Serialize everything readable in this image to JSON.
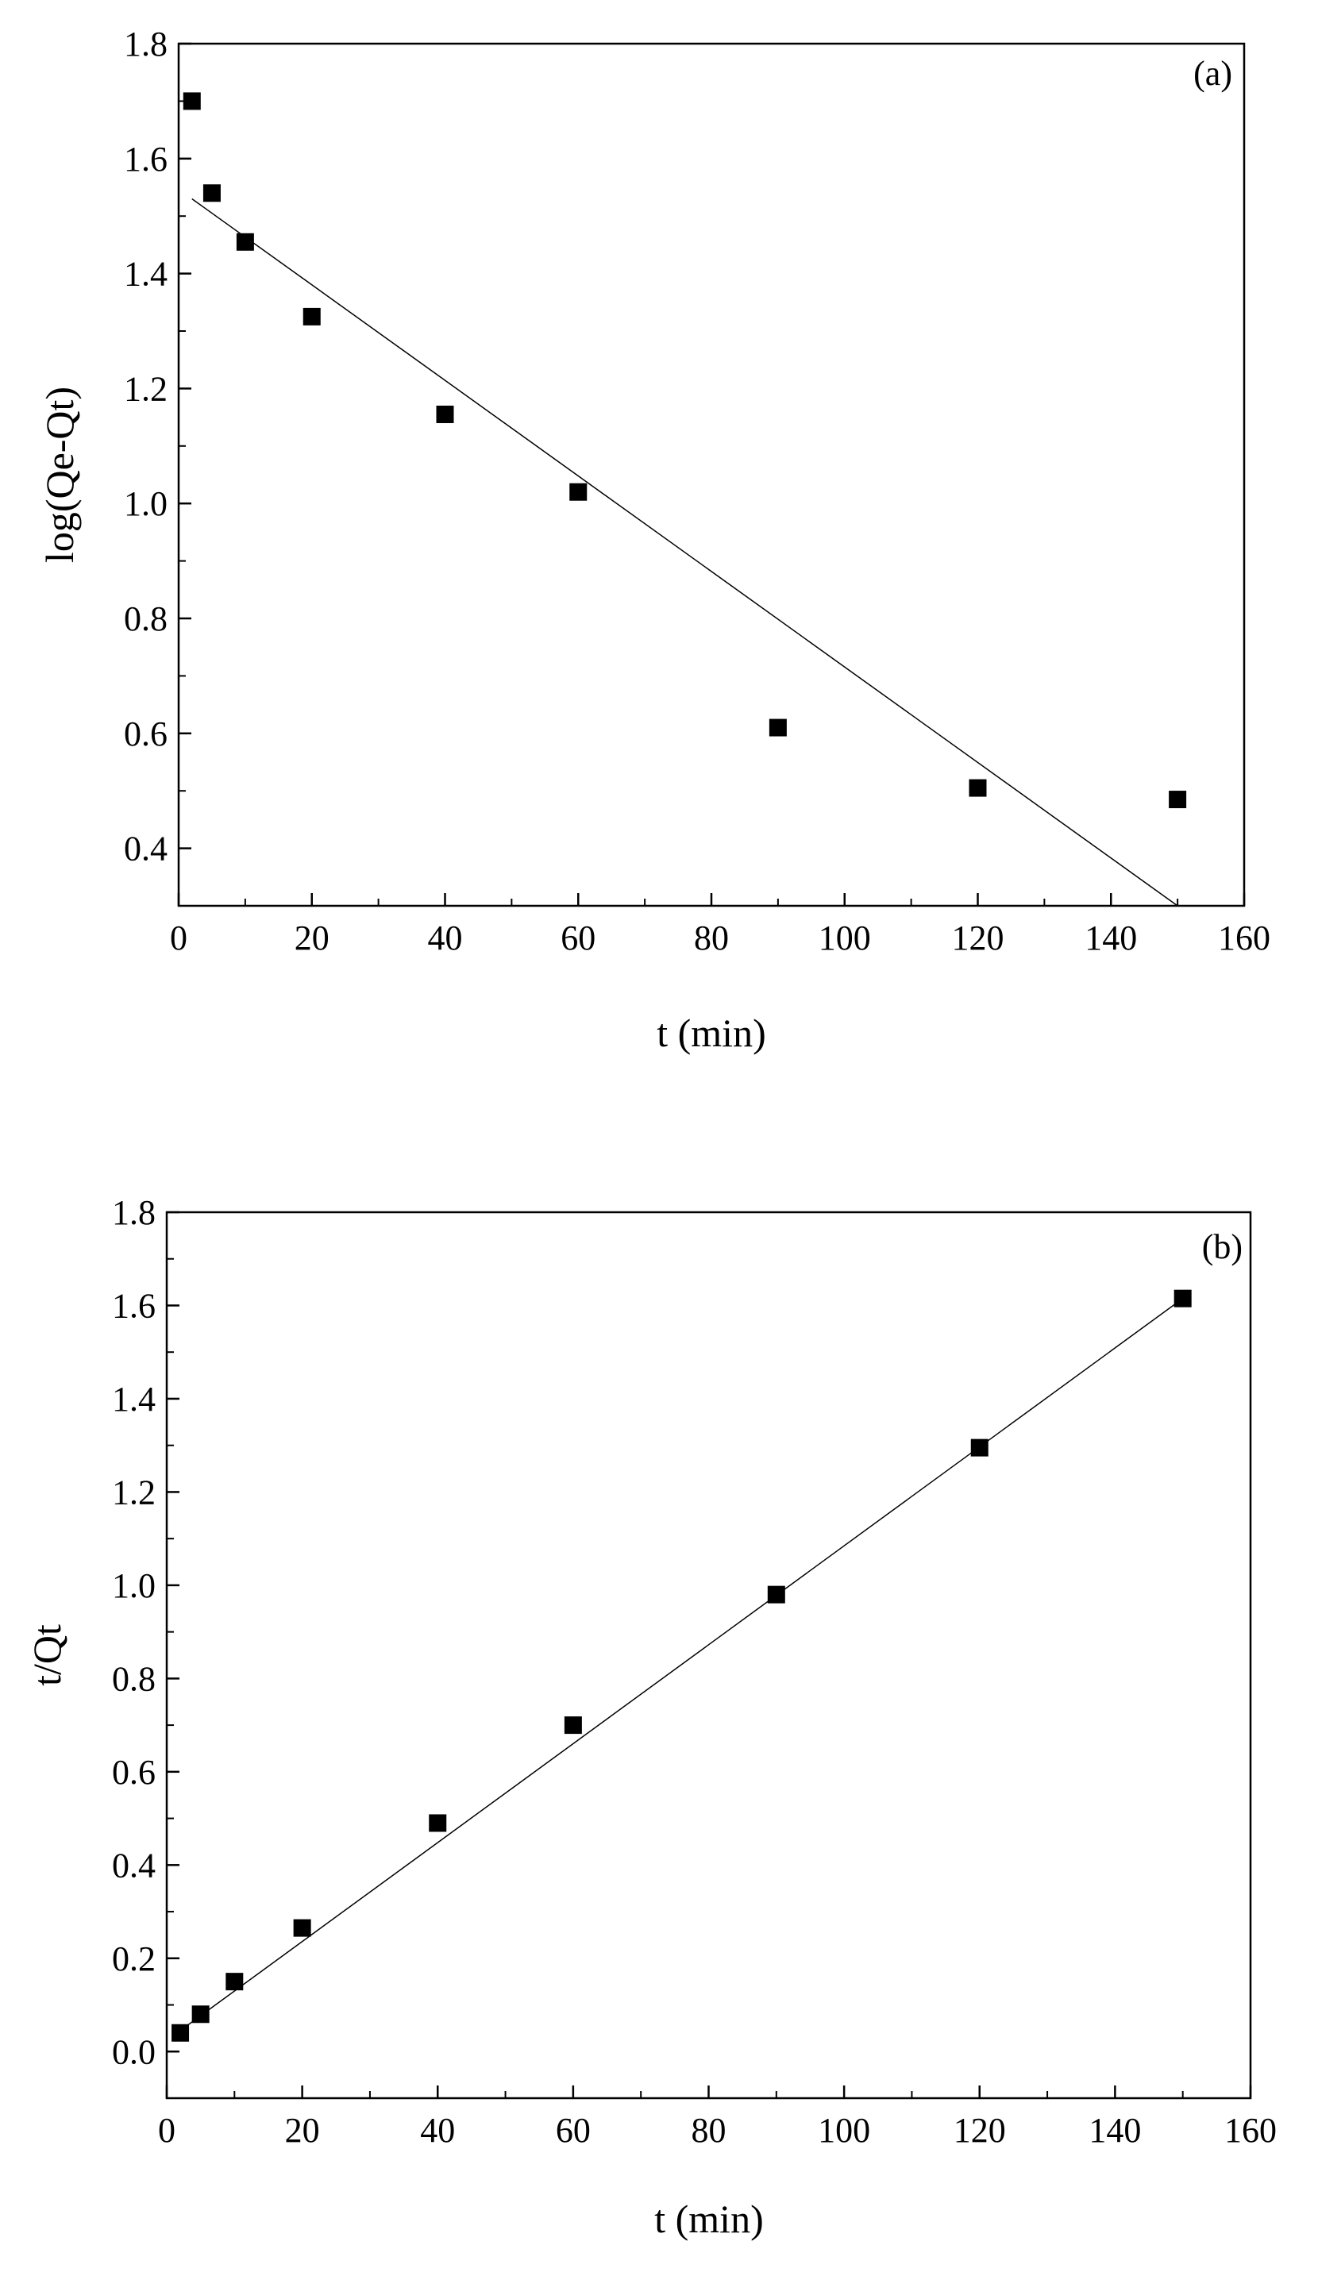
{
  "chart_data": [
    {
      "type": "scatter",
      "panel_label": "(a)",
      "title": "",
      "xlabel": "t (min)",
      "ylabel": "log(Qe-Qt)",
      "xlim": [
        0,
        160
      ],
      "ylim": [
        0.3,
        1.8
      ],
      "xticks": [
        0,
        20,
        40,
        60,
        80,
        100,
        120,
        140,
        160
      ],
      "yticks": [
        0.4,
        0.6,
        0.8,
        1.0,
        1.2,
        1.4,
        1.6,
        1.8
      ],
      "xtick_labels": [
        "0",
        "20",
        "40",
        "60",
        "80",
        "100",
        "120",
        "140",
        "160"
      ],
      "ytick_labels": [
        "0.4",
        "0.6",
        "0.8",
        "1.0",
        "1.2",
        "1.4",
        "1.6",
        "1.8"
      ],
      "grid": false,
      "points": [
        {
          "x": 2,
          "y": 1.7
        },
        {
          "x": 5,
          "y": 1.54
        },
        {
          "x": 10,
          "y": 1.455
        },
        {
          "x": 20,
          "y": 1.325
        },
        {
          "x": 40,
          "y": 1.155
        },
        {
          "x": 60,
          "y": 1.02
        },
        {
          "x": 90,
          "y": 0.61
        },
        {
          "x": 120,
          "y": 0.505
        },
        {
          "x": 150,
          "y": 0.485
        }
      ],
      "fit_line": {
        "x": [
          2,
          150
        ],
        "y": [
          1.53,
          0.3
        ]
      }
    },
    {
      "type": "scatter",
      "panel_label": "(b)",
      "title": "",
      "xlabel": "t (min)",
      "ylabel": "t/Qt",
      "xlim": [
        0,
        160
      ],
      "ylim": [
        -0.1,
        1.8
      ],
      "xticks": [
        0,
        20,
        40,
        60,
        80,
        100,
        120,
        140,
        160
      ],
      "yticks": [
        0.0,
        0.2,
        0.4,
        0.6,
        0.8,
        1.0,
        1.2,
        1.4,
        1.6,
        1.8
      ],
      "xtick_labels": [
        "0",
        "20",
        "40",
        "60",
        "80",
        "100",
        "120",
        "140",
        "160"
      ],
      "ytick_labels": [
        "0.0",
        "0.2",
        "0.4",
        "0.6",
        "0.8",
        "1.0",
        "1.2",
        "1.4",
        "1.6",
        "1.8"
      ],
      "grid": false,
      "points": [
        {
          "x": 2,
          "y": 0.04
        },
        {
          "x": 5,
          "y": 0.08
        },
        {
          "x": 10,
          "y": 0.15
        },
        {
          "x": 20,
          "y": 0.265
        },
        {
          "x": 40,
          "y": 0.49
        },
        {
          "x": 60,
          "y": 0.7
        },
        {
          "x": 90,
          "y": 0.98
        },
        {
          "x": 120,
          "y": 1.295
        },
        {
          "x": 150,
          "y": 1.615
        }
      ],
      "fit_line": {
        "x": [
          2,
          150
        ],
        "y": [
          0.045,
          1.615
        ]
      }
    }
  ]
}
